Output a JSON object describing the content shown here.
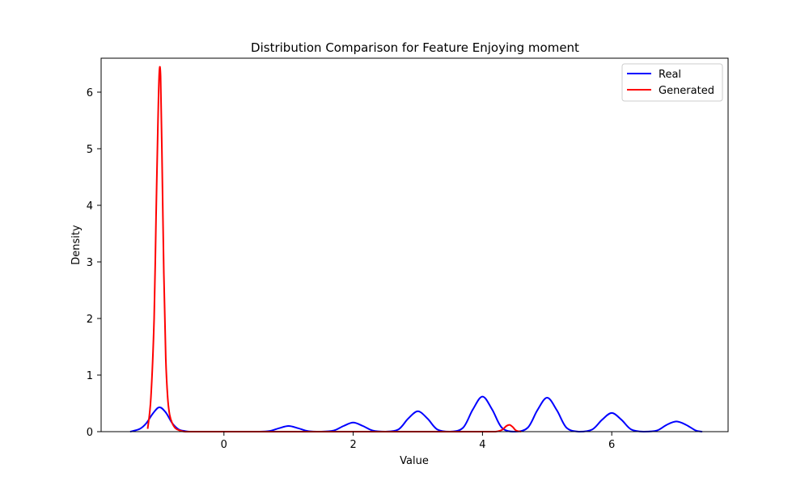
{
  "chart_data": {
    "type": "line",
    "title": "Distribution Comparison for Feature Enjoying moment",
    "xlabel": "Value",
    "ylabel": "Density",
    "xlim": [
      -1.9,
      7.8
    ],
    "ylim": [
      0,
      6.6
    ],
    "xticks": [
      0,
      2,
      4,
      6
    ],
    "yticks": [
      0,
      1,
      2,
      3,
      4,
      5,
      6
    ],
    "grid": false,
    "legend_position": "top-right",
    "series": [
      {
        "name": "Real",
        "color": "#0000ff",
        "x": [
          -1.45,
          -1.3,
          -1.2,
          -1.1,
          -1.0,
          -0.9,
          -0.8,
          -0.7,
          -0.6,
          -0.5,
          -0.3,
          0.0,
          0.5,
          0.7,
          0.85,
          1.0,
          1.15,
          1.3,
          1.5,
          1.7,
          1.85,
          2.0,
          2.15,
          2.3,
          2.5,
          2.7,
          2.85,
          3.0,
          3.15,
          3.3,
          3.5,
          3.7,
          3.85,
          4.0,
          4.15,
          4.3,
          4.5,
          4.7,
          4.85,
          5.0,
          5.15,
          5.3,
          5.5,
          5.7,
          5.85,
          6.0,
          6.15,
          6.3,
          6.5,
          6.7,
          6.85,
          7.0,
          7.15,
          7.3,
          7.4
        ],
        "y": [
          0.0,
          0.05,
          0.15,
          0.32,
          0.43,
          0.34,
          0.15,
          0.04,
          0.01,
          0.0,
          0.0,
          0.0,
          0.0,
          0.01,
          0.06,
          0.1,
          0.06,
          0.01,
          0.0,
          0.02,
          0.1,
          0.16,
          0.1,
          0.02,
          0.0,
          0.04,
          0.23,
          0.36,
          0.23,
          0.04,
          0.0,
          0.07,
          0.39,
          0.62,
          0.39,
          0.07,
          0.0,
          0.07,
          0.38,
          0.6,
          0.38,
          0.07,
          0.0,
          0.04,
          0.21,
          0.33,
          0.21,
          0.04,
          0.0,
          0.02,
          0.12,
          0.18,
          0.12,
          0.02,
          0.0
        ]
      },
      {
        "name": "Generated",
        "color": "#ff0000",
        "x": [
          -1.18,
          -1.13,
          -1.08,
          -1.05,
          -1.02,
          -1.0,
          -0.98,
          -0.96,
          -0.93,
          -0.9,
          -0.87,
          -0.84,
          -0.8,
          -0.75,
          -0.68,
          -0.6,
          -0.4,
          0.0,
          1.0,
          2.0,
          3.0,
          4.0,
          4.2,
          4.3,
          4.37,
          4.42,
          4.47,
          4.52,
          4.6
        ],
        "y": [
          0.05,
          0.6,
          2.0,
          3.8,
          5.5,
          6.35,
          6.28,
          5.0,
          2.8,
          1.3,
          0.6,
          0.3,
          0.15,
          0.06,
          0.02,
          0.0,
          0.0,
          0.0,
          0.0,
          0.0,
          0.0,
          0.0,
          0.0,
          0.03,
          0.1,
          0.12,
          0.08,
          0.02,
          0.0
        ]
      }
    ]
  }
}
